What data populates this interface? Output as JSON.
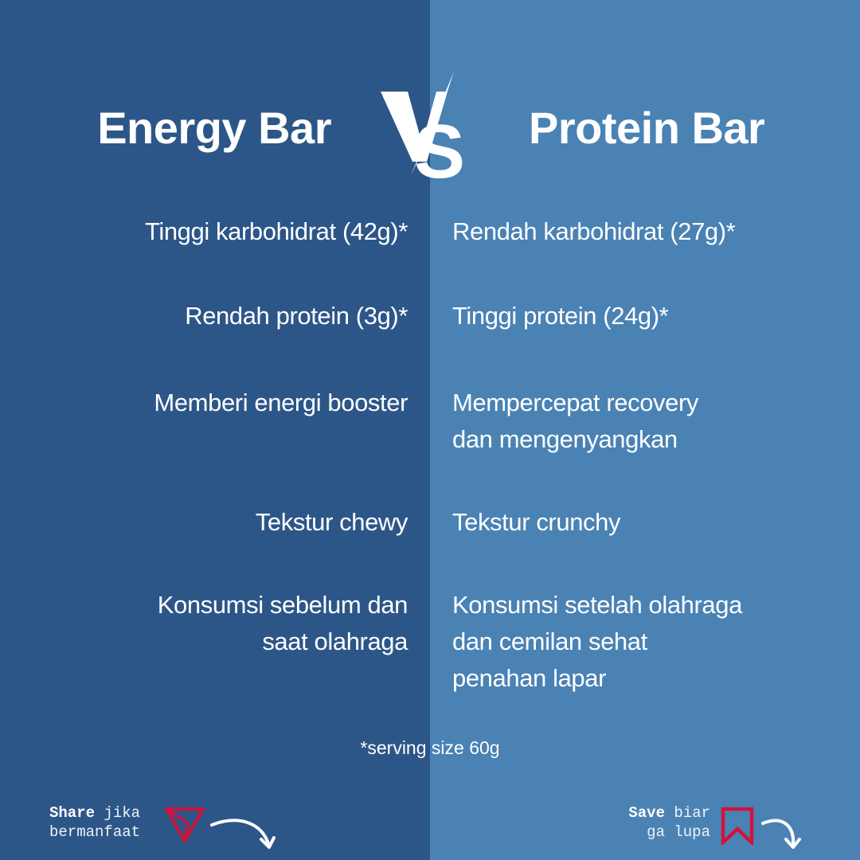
{
  "colors": {
    "left_bg": "#2d5688",
    "right_bg": "#4a82b4",
    "icon_accent": "#d0143a"
  },
  "left": {
    "title": "Energy Bar",
    "items": [
      [
        "Tinggi karbohidrat (42g)*"
      ],
      [
        "Rendah protein (3g)*"
      ],
      [
        "Memberi energi booster"
      ],
      [
        "Tekstur chewy"
      ],
      [
        "Konsumsi sebelum dan",
        "saat olahraga"
      ]
    ]
  },
  "vs": "VS",
  "right": {
    "title": "Protein Bar",
    "items": [
      [
        "Rendah karbohidrat (27g)*"
      ],
      [
        "Tinggi protein (24g)*"
      ],
      [
        "Mempercepat recovery",
        "dan mengenyangkan"
      ],
      [
        "Tekstur crunchy"
      ],
      [
        "Konsumsi setelah olahraga",
        "dan cemilan sehat",
        "penahan lapar"
      ]
    ]
  },
  "footnote": "*serving size 60g",
  "share": {
    "bold": "Share",
    "rest1": "jika",
    "line2": "bermanfaat",
    "icon": "send-icon"
  },
  "save": {
    "bold": "Save",
    "rest1": "biar",
    "line2": "ga lupa",
    "icon": "bookmark-icon"
  }
}
